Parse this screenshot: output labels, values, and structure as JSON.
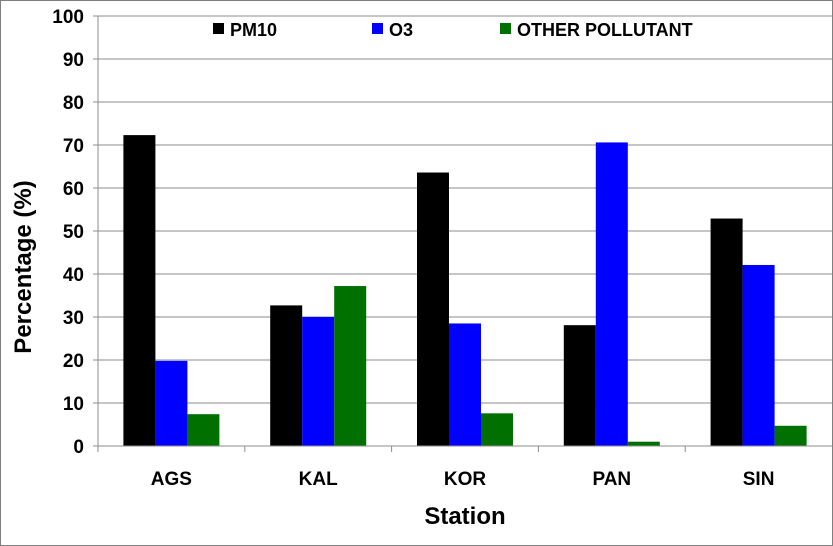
{
  "chart_data": {
    "type": "bar",
    "title": "",
    "xlabel": "Station",
    "ylabel": "Percentage (%)",
    "ylim": [
      0,
      100
    ],
    "yticks": [
      0,
      10,
      20,
      30,
      40,
      50,
      60,
      70,
      80,
      90,
      100
    ],
    "categories": [
      "AGS",
      "KAL",
      "KOR",
      "PAN",
      "SIN"
    ],
    "series": [
      {
        "name": "PM10",
        "color": "#000000",
        "values": [
          72.3,
          32.7,
          63.6,
          28.1,
          52.9
        ]
      },
      {
        "name": "O3",
        "color": "#0000ff",
        "values": [
          19.8,
          30.0,
          28.5,
          70.6,
          42.1
        ]
      },
      {
        "name": "OTHER POLLUTANT",
        "color": "#007000",
        "values": [
          7.4,
          37.2,
          7.6,
          1.0,
          4.7
        ]
      }
    ],
    "grid": true,
    "legend_position": "top"
  }
}
